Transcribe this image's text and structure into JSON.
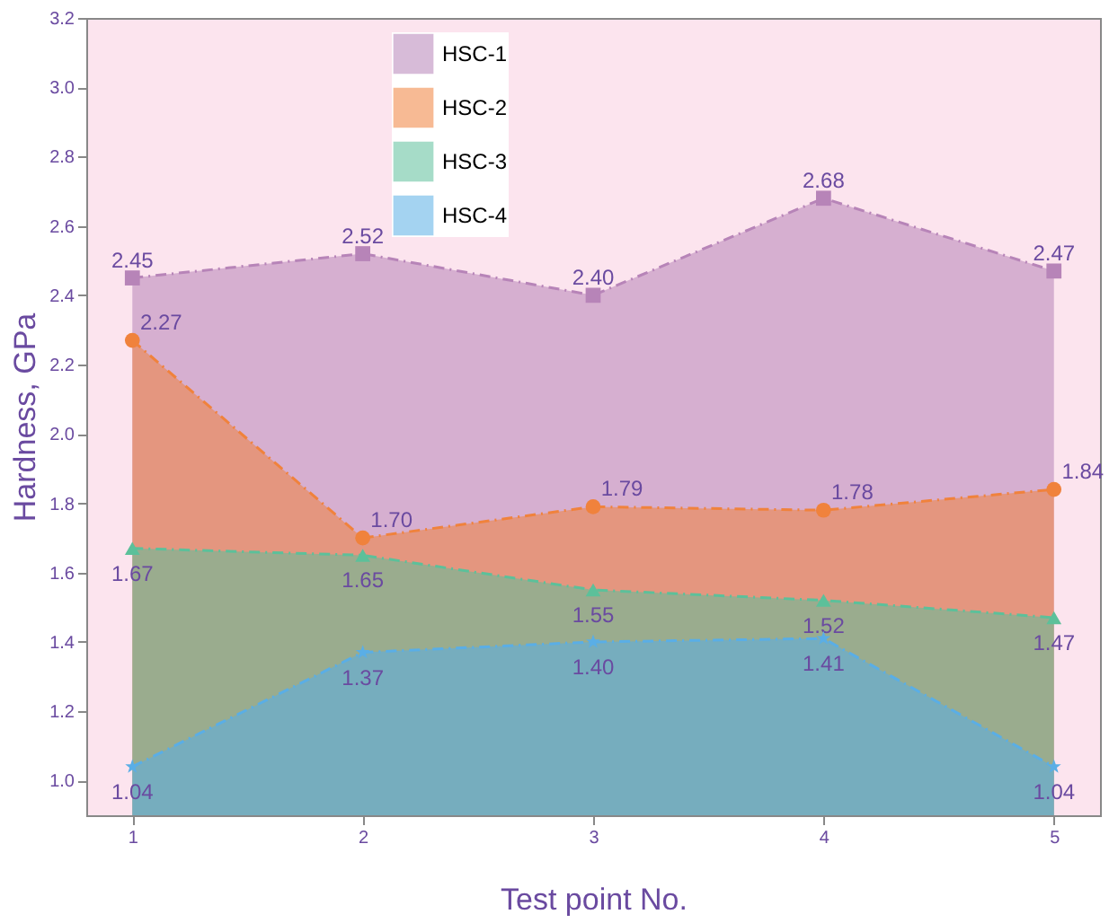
{
  "chart_data": {
    "type": "area",
    "xlabel": "Test point No.",
    "ylabel": "Hardness, GPa",
    "x": [
      1,
      2,
      3,
      4,
      5
    ],
    "xlim": [
      0.8,
      5.2
    ],
    "xticks": [
      1,
      2,
      3,
      4,
      5
    ],
    "ylim": [
      0.9,
      3.2
    ],
    "yticks": [
      {
        "value": 1.0,
        "label": "1.0"
      },
      1.2,
      1.4,
      1.6,
      1.8,
      {
        "value": 2.0,
        "label": "2.0"
      },
      2.2,
      2.4,
      2.6,
      2.8,
      {
        "value": 3.0,
        "label": "3.0"
      },
      3.2
    ],
    "series": [
      {
        "name": "HSC-1",
        "color": "#b784b8",
        "marker": "square",
        "values": [
          2.45,
          2.52,
          2.4,
          2.68,
          2.47
        ],
        "value_labels": [
          "2.45",
          "2.52",
          "2.40",
          "2.68",
          "2.47"
        ]
      },
      {
        "name": "HSC-2",
        "color": "#f0823c",
        "marker": "circle",
        "values": [
          2.27,
          1.7,
          1.79,
          1.78,
          1.84
        ],
        "value_labels": [
          "2.27",
          "1.70",
          "1.79",
          "1.78",
          "1.84"
        ]
      },
      {
        "name": "HSC-3",
        "color": "#5cc09a",
        "marker": "triangle",
        "values": [
          1.67,
          1.65,
          1.55,
          1.52,
          1.47
        ],
        "value_labels": [
          "1.67",
          "1.65",
          "1.55",
          "1.52",
          "1.47"
        ]
      },
      {
        "name": "HSC-4",
        "color": "#5aaee6",
        "marker": "star",
        "values": [
          1.04,
          1.37,
          1.4,
          1.41,
          1.04
        ],
        "value_labels": [
          "1.04",
          "1.37",
          "1.40",
          "1.41",
          "1.04"
        ]
      }
    ],
    "line_style": "dashed",
    "legend": "top",
    "grid": false
  }
}
